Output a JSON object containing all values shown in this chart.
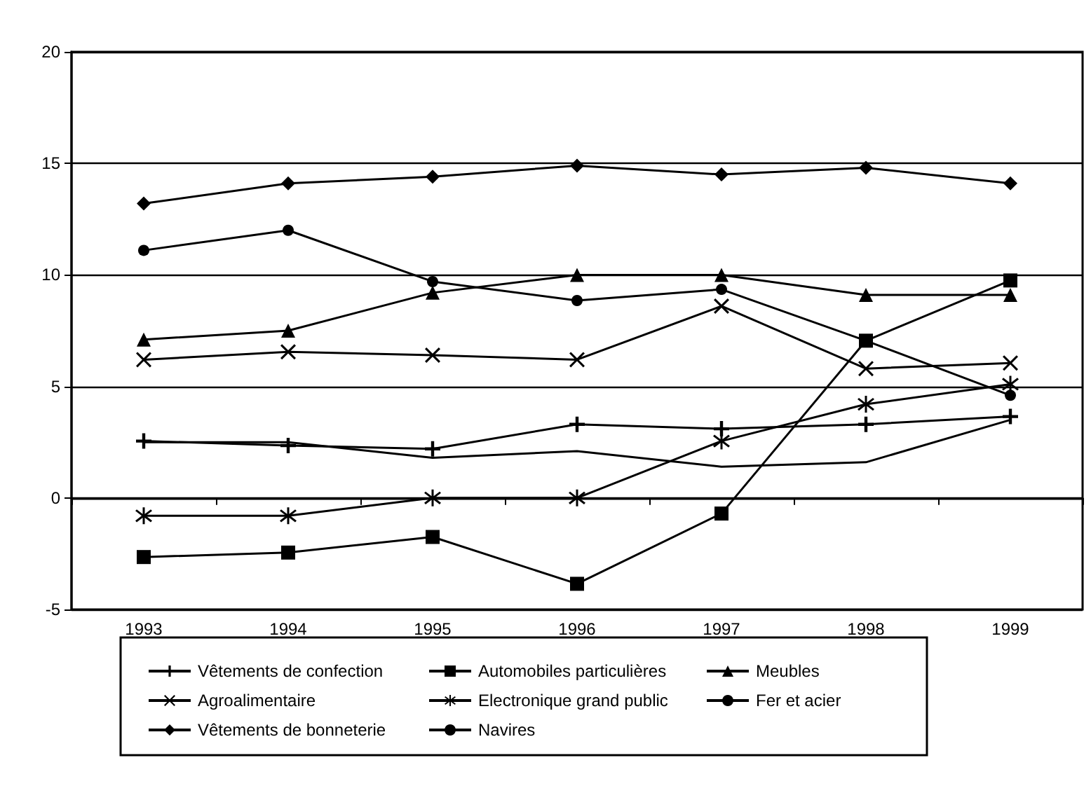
{
  "chart_data": {
    "type": "line",
    "categories": [
      "1993",
      "1994",
      "1995",
      "1996",
      "1997",
      "1998",
      "1999"
    ],
    "ylim": [
      -5,
      20
    ],
    "yticks": [
      -5,
      0,
      5,
      10,
      15,
      20
    ],
    "grid": "y",
    "legend": "bottom",
    "line_style": "solid",
    "series": [
      {
        "name": "Vêtements de confection",
        "color": "#000000",
        "marker": "plus",
        "values": [
          2.55,
          2.35,
          2.2,
          3.3,
          3.1,
          3.3,
          3.65
        ]
      },
      {
        "name": "Automobiles particulières",
        "color": "#000000",
        "marker": "square",
        "values": [
          -2.65,
          -2.45,
          -1.75,
          -3.85,
          -0.7,
          7.05,
          9.75
        ]
      },
      {
        "name": "Meubles",
        "color": "#000000",
        "marker": "triangle",
        "values": [
          7.1,
          7.5,
          9.2,
          10.0,
          10.0,
          9.1,
          9.1
        ]
      },
      {
        "name": "Agroalimentaire",
        "color": "#000000",
        "marker": "x",
        "values": [
          6.2,
          6.55,
          6.4,
          6.2,
          8.6,
          5.8,
          6.05
        ]
      },
      {
        "name": "Electronique grand public",
        "color": "#000000",
        "marker": "asterisk",
        "values": [
          -0.8,
          -0.8,
          0,
          0,
          2.55,
          4.2,
          5.1
        ]
      },
      {
        "name": "Fer et acier",
        "color": "#000000",
        "marker": "circle",
        "values": [
          11.1,
          12.0,
          9.7,
          8.85,
          9.35,
          7.05,
          4.6
        ]
      },
      {
        "name": "Vêtements de bonneterie",
        "color": "#000000",
        "marker": "diamond",
        "values": [
          13.2,
          14.1,
          14.4,
          14.9,
          14.5,
          14.8,
          14.1
        ]
      },
      {
        "name": "Navires",
        "color": "#000000",
        "values": [
          2.5,
          2.5,
          1.8,
          2.1,
          1.4,
          1.6,
          3.5
        ]
      }
    ]
  }
}
